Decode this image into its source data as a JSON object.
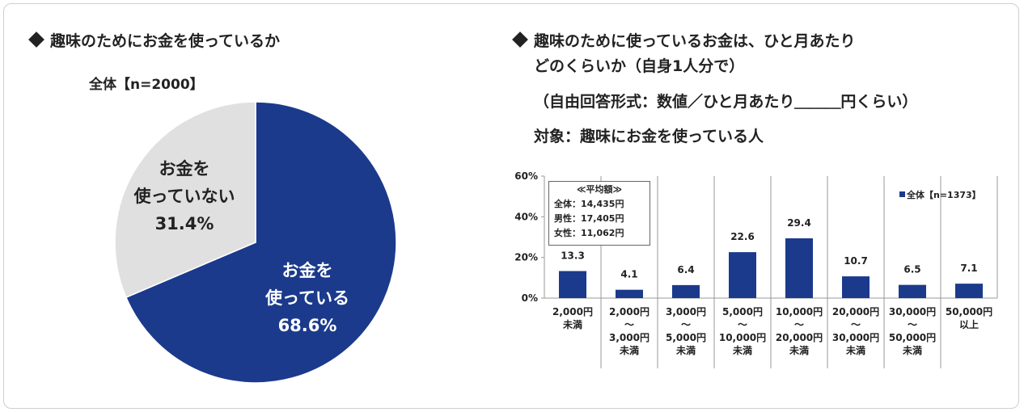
{
  "pie_title": "趣味のためにお金を使っているか",
  "pie_subtitle": "全体【n=2000】",
  "bar_title_lines": [
    "趣味のために使っているお金は、ひと月あたり",
    "どのくらいか（自身1人分で）",
    "（自由回答形式：数値／ひと月あたり＿＿＿円くらい）",
    "対象：趣味にお金を使っている人"
  ],
  "average_box": {
    "header": "≪平均額≫",
    "lines": [
      "全体：14,435円",
      "男性：17,405円",
      "女性：11,062円"
    ]
  },
  "legend_label": "全体【n=1373】",
  "colors": {
    "primary": "#1b3a8c",
    "secondary": "#e0e0e0",
    "grid": "#9a9a9a"
  },
  "chart_data": [
    {
      "type": "pie",
      "title": "趣味のためにお金を使っているか",
      "subtitle": "全体【n=2000】",
      "slices": [
        {
          "label_lines": [
            "お金を",
            "使っている"
          ],
          "value": 68.6,
          "value_label": "68.6%",
          "color": "#1b3a8c"
        },
        {
          "label_lines": [
            "お金を",
            "使っていない"
          ],
          "value": 31.4,
          "value_label": "31.4%",
          "color": "#e0e0e0"
        }
      ]
    },
    {
      "type": "bar",
      "categories": [
        [
          "2,000円",
          "未満"
        ],
        [
          "2,000円",
          "～",
          "3,000円",
          "未満"
        ],
        [
          "3,000円",
          "～",
          "5,000円",
          "未満"
        ],
        [
          "5,000円",
          "～",
          "10,000円",
          "未満"
        ],
        [
          "10,000円",
          "～",
          "20,000円",
          "未満"
        ],
        [
          "20,000円",
          "～",
          "30,000円",
          "未満"
        ],
        [
          "30,000円",
          "～",
          "50,000円",
          "未満"
        ],
        [
          "50,000円",
          "以上"
        ]
      ],
      "series": [
        {
          "name": "全体【n=1373】",
          "values": [
            13.3,
            4.1,
            6.4,
            22.6,
            29.4,
            10.7,
            6.5,
            7.1
          ]
        }
      ],
      "yticks": [
        "0%",
        "20%",
        "40%",
        "60%"
      ],
      "ylim": [
        0,
        60
      ],
      "legend_position": "top-right",
      "grid": false
    }
  ]
}
